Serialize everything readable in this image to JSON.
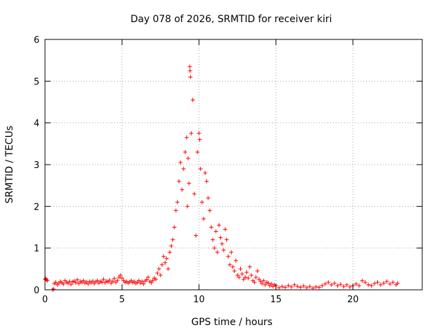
{
  "chart_data": {
    "type": "scatter",
    "title": "Day 078 of 2026, SRMTID for receiver kiri",
    "xlabel": "GPS time / hours",
    "ylabel": "SRMTID / TECUs",
    "xlim": [
      0,
      24.5
    ],
    "ylim": [
      0,
      6
    ],
    "xticks": [
      0,
      5,
      10,
      15,
      20
    ],
    "yticks": [
      0,
      1,
      2,
      3,
      4,
      5,
      6
    ],
    "xtick_labels": [
      "0",
      "5",
      "10",
      "15",
      "20"
    ],
    "ytick_labels": [
      "0",
      "1",
      "2",
      "3",
      "4",
      "5",
      "6"
    ],
    "grid": true,
    "marker": "+",
    "color": "#ff0000",
    "series": [
      {
        "name": "SRMTID",
        "points": [
          [
            0.0,
            0.25
          ],
          [
            0.05,
            0.27
          ],
          [
            0.1,
            0.24
          ],
          [
            0.15,
            0.22
          ],
          [
            0.5,
            0.0
          ],
          [
            0.55,
            0.02
          ],
          [
            0.6,
            0.15
          ],
          [
            0.7,
            0.18
          ],
          [
            0.8,
            0.12
          ],
          [
            0.9,
            0.16
          ],
          [
            1.0,
            0.2
          ],
          [
            1.1,
            0.17
          ],
          [
            1.2,
            0.14
          ],
          [
            1.3,
            0.22
          ],
          [
            1.4,
            0.18
          ],
          [
            1.5,
            0.16
          ],
          [
            1.6,
            0.2
          ],
          [
            1.7,
            0.13
          ],
          [
            1.8,
            0.19
          ],
          [
            1.9,
            0.21
          ],
          [
            2.0,
            0.17
          ],
          [
            2.1,
            0.24
          ],
          [
            2.2,
            0.15
          ],
          [
            2.3,
            0.2
          ],
          [
            2.4,
            0.18
          ],
          [
            2.5,
            0.22
          ],
          [
            2.6,
            0.16
          ],
          [
            2.7,
            0.19
          ],
          [
            2.8,
            0.14
          ],
          [
            2.9,
            0.2
          ],
          [
            3.0,
            0.17
          ],
          [
            3.1,
            0.21
          ],
          [
            3.2,
            0.15
          ],
          [
            3.3,
            0.19
          ],
          [
            3.4,
            0.22
          ],
          [
            3.5,
            0.16
          ],
          [
            3.6,
            0.2
          ],
          [
            3.7,
            0.18
          ],
          [
            3.8,
            0.25
          ],
          [
            3.9,
            0.17
          ],
          [
            4.0,
            0.21
          ],
          [
            4.1,
            0.19
          ],
          [
            4.2,
            0.23
          ],
          [
            4.3,
            0.16
          ],
          [
            4.4,
            0.2
          ],
          [
            4.5,
            0.27
          ],
          [
            4.6,
            0.18
          ],
          [
            4.7,
            0.22
          ],
          [
            4.8,
            0.3
          ],
          [
            4.9,
            0.35
          ],
          [
            5.0,
            0.28
          ],
          [
            5.1,
            0.22
          ],
          [
            5.2,
            0.18
          ],
          [
            5.3,
            0.2
          ],
          [
            5.4,
            0.16
          ],
          [
            5.5,
            0.19
          ],
          [
            5.6,
            0.22
          ],
          [
            5.7,
            0.17
          ],
          [
            5.8,
            0.2
          ],
          [
            5.9,
            0.15
          ],
          [
            6.0,
            0.18
          ],
          [
            6.1,
            0.22
          ],
          [
            6.2,
            0.16
          ],
          [
            6.3,
            0.2
          ],
          [
            6.4,
            0.14
          ],
          [
            6.5,
            0.21
          ],
          [
            6.6,
            0.24
          ],
          [
            6.7,
            0.3
          ],
          [
            6.8,
            0.2
          ],
          [
            6.9,
            0.17
          ],
          [
            7.0,
            0.22
          ],
          [
            7.1,
            0.28
          ],
          [
            7.2,
            0.25
          ],
          [
            7.3,
            0.4
          ],
          [
            7.4,
            0.5
          ],
          [
            7.5,
            0.35
          ],
          [
            7.6,
            0.6
          ],
          [
            7.7,
            0.8
          ],
          [
            7.8,
            0.65
          ],
          [
            7.9,
            0.75
          ],
          [
            8.0,
            0.5
          ],
          [
            8.1,
            0.9
          ],
          [
            8.2,
            1.05
          ],
          [
            8.3,
            1.2
          ],
          [
            8.4,
            1.5
          ],
          [
            8.5,
            1.9
          ],
          [
            8.6,
            2.1
          ],
          [
            8.7,
            2.6
          ],
          [
            8.8,
            3.05
          ],
          [
            8.9,
            2.4
          ],
          [
            9.0,
            2.9
          ],
          [
            9.1,
            3.3
          ],
          [
            9.2,
            3.65
          ],
          [
            9.25,
            2.0
          ],
          [
            9.3,
            3.15
          ],
          [
            9.35,
            2.55
          ],
          [
            9.4,
            5.35
          ],
          [
            9.42,
            5.25
          ],
          [
            9.45,
            5.1
          ],
          [
            9.5,
            3.75
          ],
          [
            9.6,
            4.55
          ],
          [
            9.7,
            2.3
          ],
          [
            9.8,
            1.3
          ],
          [
            9.9,
            3.3
          ],
          [
            10.0,
            3.75
          ],
          [
            10.05,
            3.6
          ],
          [
            10.1,
            2.9
          ],
          [
            10.2,
            2.1
          ],
          [
            10.3,
            1.7
          ],
          [
            10.4,
            2.8
          ],
          [
            10.5,
            2.6
          ],
          [
            10.6,
            2.2
          ],
          [
            10.7,
            1.9
          ],
          [
            10.8,
            1.5
          ],
          [
            10.9,
            1.2
          ],
          [
            11.0,
            1.0
          ],
          [
            11.1,
            1.4
          ],
          [
            11.2,
            0.9
          ],
          [
            11.3,
            1.55
          ],
          [
            11.4,
            1.25
          ],
          [
            11.5,
            1.1
          ],
          [
            11.6,
            0.95
          ],
          [
            11.7,
            1.45
          ],
          [
            11.8,
            1.2
          ],
          [
            11.9,
            0.8
          ],
          [
            12.0,
            0.6
          ],
          [
            12.1,
            0.9
          ],
          [
            12.2,
            0.55
          ],
          [
            12.3,
            0.45
          ],
          [
            12.4,
            0.7
          ],
          [
            12.5,
            0.35
          ],
          [
            12.6,
            0.3
          ],
          [
            12.7,
            0.5
          ],
          [
            12.8,
            0.38
          ],
          [
            12.9,
            0.25
          ],
          [
            13.0,
            0.3
          ],
          [
            13.1,
            0.42
          ],
          [
            13.2,
            0.28
          ],
          [
            13.3,
            0.55
          ],
          [
            13.4,
            0.35
          ],
          [
            13.5,
            0.22
          ],
          [
            13.6,
            0.18
          ],
          [
            13.7,
            0.3
          ],
          [
            13.8,
            0.45
          ],
          [
            13.9,
            0.25
          ],
          [
            14.0,
            0.2
          ],
          [
            14.1,
            0.15
          ],
          [
            14.2,
            0.22
          ],
          [
            14.3,
            0.12
          ],
          [
            14.4,
            0.18
          ],
          [
            14.5,
            0.16
          ],
          [
            14.6,
            0.1
          ],
          [
            14.7,
            0.14
          ],
          [
            14.8,
            0.08
          ],
          [
            14.9,
            0.12
          ],
          [
            15.0,
            0.1
          ],
          [
            15.2,
            0.05
          ],
          [
            15.4,
            0.08
          ],
          [
            15.6,
            0.06
          ],
          [
            15.8,
            0.1
          ],
          [
            16.0,
            0.07
          ],
          [
            16.2,
            0.12
          ],
          [
            16.4,
            0.08
          ],
          [
            16.6,
            0.06
          ],
          [
            16.8,
            0.09
          ],
          [
            17.0,
            0.05
          ],
          [
            17.2,
            0.08
          ],
          [
            17.4,
            0.04
          ],
          [
            17.6,
            0.07
          ],
          [
            17.8,
            0.06
          ],
          [
            18.0,
            0.1
          ],
          [
            18.2,
            0.14
          ],
          [
            18.4,
            0.18
          ],
          [
            18.6,
            0.12
          ],
          [
            18.8,
            0.16
          ],
          [
            19.0,
            0.1
          ],
          [
            19.2,
            0.13
          ],
          [
            19.4,
            0.08
          ],
          [
            19.6,
            0.12
          ],
          [
            19.8,
            0.07
          ],
          [
            20.0,
            0.1
          ],
          [
            20.2,
            0.14
          ],
          [
            20.4,
            0.1
          ],
          [
            20.6,
            0.22
          ],
          [
            20.8,
            0.18
          ],
          [
            21.0,
            0.12
          ],
          [
            21.2,
            0.1
          ],
          [
            21.4,
            0.15
          ],
          [
            21.6,
            0.18
          ],
          [
            21.8,
            0.12
          ],
          [
            22.0,
            0.16
          ],
          [
            22.2,
            0.2
          ],
          [
            22.4,
            0.14
          ],
          [
            22.6,
            0.18
          ],
          [
            22.8,
            0.12
          ],
          [
            22.9,
            0.16
          ]
        ]
      }
    ]
  }
}
